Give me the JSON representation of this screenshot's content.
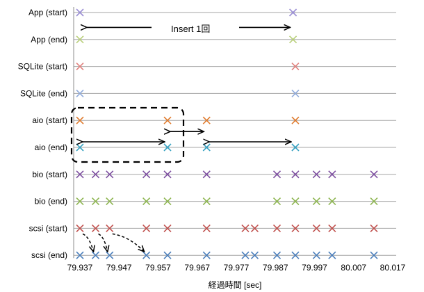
{
  "chart_data": {
    "type": "scatter",
    "title": "",
    "xlabel": "経過時間 [sec]",
    "ylabel": "",
    "xlim": [
      79.937,
      80.017
    ],
    "x_ticks": [
      "79.937",
      "79.947",
      "79.957",
      "79.967",
      "79.977",
      "79.987",
      "79.997",
      "80.007",
      "80.017"
    ],
    "grid": "horizontal",
    "marker": "x",
    "categories": [
      "App (start)",
      "App (end)",
      "SQLite (start)",
      "SQLite (end)",
      "aio (start)",
      "aio (end)",
      "bio (start)",
      "bio (end)",
      "scsi (start)",
      "scsi (end)"
    ],
    "series": [
      {
        "category": "App (start)",
        "color": "#9b8fd4",
        "x": [
          79.937,
          79.9915
        ]
      },
      {
        "category": "App (end)",
        "color": "#b8cf7a",
        "x": [
          79.937,
          79.9915
        ]
      },
      {
        "category": "SQLite (start)",
        "color": "#e0807d",
        "x": [
          79.937,
          79.9921
        ]
      },
      {
        "category": "SQLite (end)",
        "color": "#8eaadb",
        "x": [
          79.937,
          79.9921
        ]
      },
      {
        "category": "aio (start)",
        "color": "#e07b2e",
        "x": [
          79.937,
          79.9594,
          79.9694,
          79.9921
        ]
      },
      {
        "category": "aio (end)",
        "color": "#3aa3c2",
        "x": [
          79.937,
          79.9594,
          79.9694,
          79.9921
        ]
      },
      {
        "category": "bio (start)",
        "color": "#7d4fa0",
        "x": [
          79.937,
          79.941,
          79.9446,
          79.954,
          79.9594,
          79.9694,
          79.9874,
          79.9921,
          79.9975,
          80.0015,
          80.0122
        ]
      },
      {
        "category": "bio (end)",
        "color": "#8db550",
        "x": [
          79.937,
          79.941,
          79.9446,
          79.954,
          79.9594,
          79.9694,
          79.9874,
          79.9921,
          79.9975,
          80.0015,
          80.0122
        ]
      },
      {
        "category": "scsi (start)",
        "color": "#c0504d",
        "x": [
          79.937,
          79.941,
          79.9446,
          79.954,
          79.9594,
          79.9694,
          79.9793,
          79.9817,
          79.9874,
          79.9921,
          79.9975,
          80.0015,
          80.0122
        ]
      },
      {
        "category": "scsi (end)",
        "color": "#4a7ebb",
        "x": [
          79.937,
          79.941,
          79.9446,
          79.954,
          79.9594,
          79.9694,
          79.9793,
          79.9817,
          79.9874,
          79.9921,
          79.9975,
          80.0015,
          80.0122
        ]
      }
    ],
    "annotations": {
      "insert_label": "Insert 1回",
      "insert_span": [
        79.937,
        79.9915
      ],
      "aio_spans": [
        [
          79.937,
          79.9594
        ],
        [
          79.9594,
          79.9694
        ],
        [
          79.9694,
          79.9921
        ]
      ],
      "scsi_arrows": [
        [
          79.937,
          79.941
        ],
        [
          79.941,
          79.9446
        ],
        [
          79.9446,
          79.954
        ]
      ]
    }
  }
}
